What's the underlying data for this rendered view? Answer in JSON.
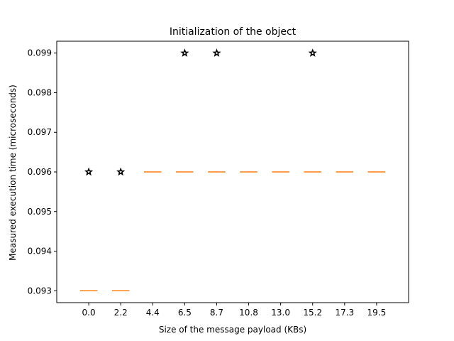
{
  "chart_data": {
    "type": "box",
    "title": "Initialization of the object",
    "xlabel": "Size of the message payload (KBs)",
    "ylabel": "Measured execution time (microseconds)",
    "categories": [
      "0.0",
      "2.2",
      "4.4",
      "6.5",
      "8.7",
      "10.8",
      "13.0",
      "15.2",
      "17.3",
      "19.5"
    ],
    "medians": [
      0.093,
      0.093,
      0.096,
      0.096,
      0.096,
      0.096,
      0.096,
      0.096,
      0.096,
      0.096
    ],
    "outliers": [
      {
        "category": "0.0",
        "value": 0.096
      },
      {
        "category": "2.2",
        "value": 0.096
      },
      {
        "category": "6.5",
        "value": 0.099
      },
      {
        "category": "8.7",
        "value": 0.099
      },
      {
        "category": "15.2",
        "value": 0.099
      }
    ],
    "yticks": [
      "0.093",
      "0.094",
      "0.095",
      "0.096",
      "0.097",
      "0.098",
      "0.099"
    ],
    "ylim": [
      0.0927,
      0.0993
    ],
    "grid": false,
    "colors": {
      "median": "#ff7f0e",
      "box": "#000000",
      "outlier": "#000000"
    }
  }
}
